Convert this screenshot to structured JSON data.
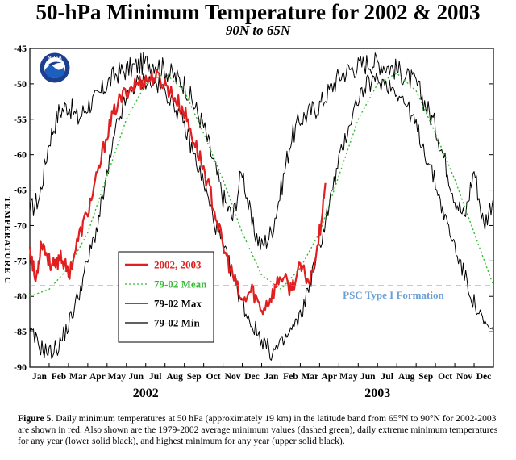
{
  "title": "50-hPa Minimum Temperature for 2002 & 2003",
  "subtitle": "90N to 65N",
  "logo_text": "NOAA",
  "caption": {
    "label": "Figure 5.",
    "text": " Daily minimum temperatures at 50 hPa (approximately 19 km) in the latitude band from 65°N to 90°N for 2002-2003 are shown in red.  Also shown are the 1979-2002 average minimum values (dashed green), daily extreme minimum temperatures for any year (lower solid black), and highest minimum for any year (upper solid black)."
  },
  "colors": {
    "red": "#e02020",
    "green": "#33bb33",
    "black": "#000000",
    "psc": "#6a9fd8"
  },
  "chart_data": {
    "type": "line",
    "title": "50-hPa Minimum Temperature for 2002 & 2003",
    "subtitle": "90N to 65N",
    "xlabel": "",
    "ylabel": "TEMPERATURE C",
    "ylim": [
      -90,
      -45
    ],
    "xlim_months": [
      0,
      24
    ],
    "yticks": [
      -45,
      -50,
      -55,
      -60,
      -65,
      -70,
      -75,
      -80,
      -85,
      -90
    ],
    "month_labels": [
      "Jan",
      "Feb",
      "Mar",
      "Apr",
      "May",
      "Jun",
      "Jul",
      "Aug",
      "Sep",
      "Oct",
      "Nov",
      "Dec",
      "Jan",
      "Feb",
      "Mar",
      "Apr",
      "May",
      "Jun",
      "Jul",
      "Aug",
      "Sep",
      "Oct",
      "Nov",
      "Dec"
    ],
    "year_labels": [
      {
        "label": "2002",
        "month": 6
      },
      {
        "label": "2003",
        "month": 18
      }
    ],
    "legend": {
      "placement": "lower-left",
      "entries": [
        {
          "label": "2002, 2003",
          "color": "#e02020",
          "style": "solid-thick"
        },
        {
          "label": "79-02 Mean",
          "color": "#33bb33",
          "style": "dotted"
        },
        {
          "label": "79-02 Max",
          "color": "#000000",
          "style": "solid"
        },
        {
          "label": "79-02 Min",
          "color": "#000000",
          "style": "solid"
        }
      ]
    },
    "reference_line": {
      "label": "PSC Type I Formation",
      "y": -78.5,
      "color": "#6a9fd8",
      "style": "dashed"
    },
    "series": [
      {
        "name": "2002, 2003",
        "color": "#e02020",
        "x": [
          0,
          0.3,
          0.6,
          1,
          1.3,
          1.6,
          2,
          2.5,
          3,
          3.5,
          4,
          4.5,
          5,
          5.5,
          6,
          6.5,
          7,
          7.5,
          8,
          8.5,
          9,
          9.5,
          10,
          10.5,
          11,
          11.5,
          12,
          12.5,
          13,
          13.5,
          14,
          14.5,
          15,
          15.3
        ],
        "y": [
          -73,
          -78,
          -72,
          -75,
          -76,
          -74,
          -77,
          -72,
          -68,
          -63,
          -57,
          -53,
          -51,
          -50,
          -49.5,
          -49,
          -50,
          -52,
          -54,
          -58,
          -62,
          -67,
          -73,
          -77,
          -81,
          -79,
          -82,
          -80,
          -77,
          -79,
          -76,
          -78,
          -71,
          -64
        ]
      },
      {
        "name": "79-02 Mean",
        "color": "#33bb33",
        "x": [
          0,
          1,
          2,
          3,
          4,
          5,
          6,
          7,
          8,
          9,
          10,
          11,
          12,
          13,
          14,
          15,
          16,
          17,
          18,
          19,
          20,
          21,
          22,
          23,
          24
        ],
        "y": [
          -80,
          -79,
          -76,
          -71,
          -63,
          -55,
          -50,
          -48.5,
          -51,
          -57,
          -63.5,
          -71,
          -77,
          -79,
          -76,
          -71,
          -63,
          -55,
          -50,
          -48.5,
          -51,
          -57,
          -63.5,
          -71,
          -78.5
        ]
      },
      {
        "name": "79-02 Max",
        "color": "#000000",
        "x": [
          0,
          0.5,
          1,
          1.5,
          2,
          2.5,
          3,
          3.5,
          4,
          4.5,
          5,
          5.5,
          6,
          6.5,
          7,
          7.5,
          8,
          8.5,
          9,
          9.5,
          10,
          10.5,
          11,
          11.5,
          12,
          12.5,
          13,
          13.5,
          14,
          14.5,
          15,
          15.5,
          16,
          16.5,
          17,
          17.5,
          18,
          18.5,
          19,
          19.5,
          20,
          20.5,
          21,
          21.5,
          22,
          22.5,
          23,
          23.5,
          24
        ],
        "y": [
          -68,
          -66,
          -58,
          -54,
          -53,
          -55,
          -53,
          -52,
          -50,
          -48.5,
          -48,
          -47.5,
          -47,
          -47,
          -48,
          -49,
          -50,
          -53,
          -56,
          -61,
          -66,
          -69,
          -62,
          -70,
          -73,
          -71,
          -65,
          -58,
          -55,
          -54,
          -53,
          -51,
          -49,
          -48,
          -47.5,
          -47,
          -47,
          -47.5,
          -48,
          -49,
          -50,
          -53,
          -56,
          -61,
          -66,
          -69,
          -62,
          -70,
          -66
        ]
      },
      {
        "name": "79-02 Min",
        "color": "#000000",
        "x": [
          0,
          0.5,
          1,
          1.5,
          2,
          2.5,
          3,
          3.5,
          4,
          4.5,
          5,
          5.5,
          6,
          6.5,
          7,
          7.5,
          8,
          8.5,
          9,
          9.5,
          10,
          10.5,
          11,
          11.5,
          12,
          12.5,
          13,
          13.5,
          14,
          14.5,
          15,
          15.5,
          16,
          16.5,
          17,
          17.5,
          18,
          18.5,
          19,
          19.5,
          20,
          20.5,
          21,
          21.5,
          22,
          22.5,
          23,
          23.5,
          24
        ],
        "y": [
          -85,
          -87,
          -88,
          -87,
          -84,
          -80,
          -75,
          -70,
          -63,
          -56,
          -52,
          -50,
          -49.5,
          -50,
          -51,
          -53,
          -56,
          -60,
          -64,
          -69,
          -73,
          -77,
          -81,
          -84,
          -86,
          -88,
          -87,
          -85,
          -83,
          -78,
          -73,
          -67,
          -61,
          -56,
          -52,
          -50,
          -49.5,
          -50,
          -51,
          -53,
          -56,
          -60,
          -64,
          -69,
          -73,
          -77,
          -81,
          -84,
          -85
        ]
      }
    ]
  }
}
